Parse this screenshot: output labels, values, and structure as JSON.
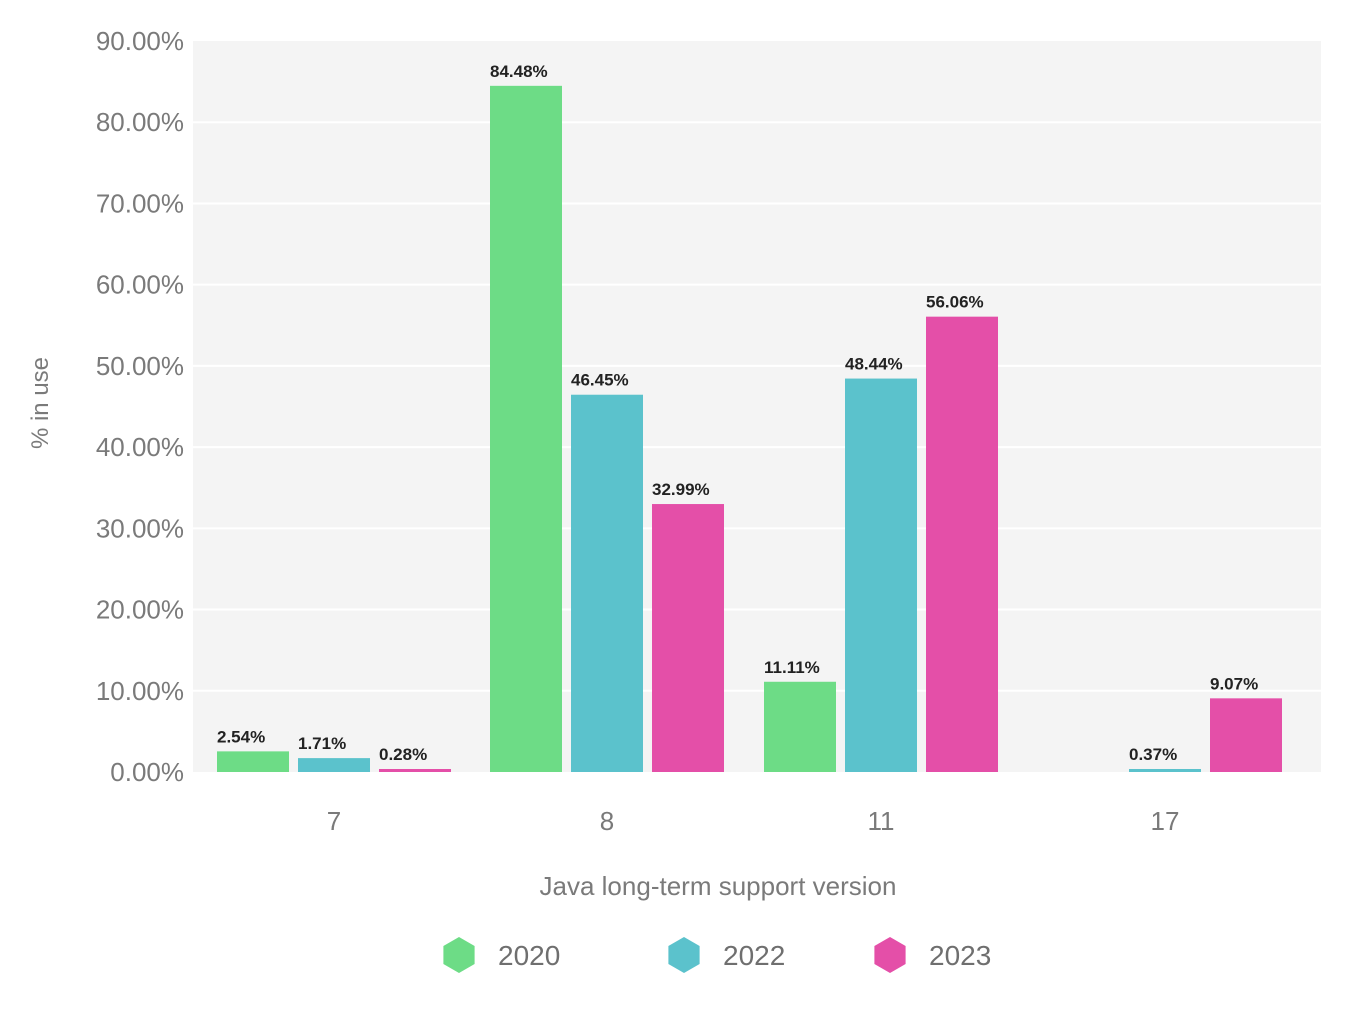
{
  "chart_data": {
    "type": "bar",
    "title": "",
    "xlabel": "Java long-term support version",
    "ylabel": "% in use",
    "categories": [
      "7",
      "8",
      "11",
      "17"
    ],
    "series": [
      {
        "name": "2020",
        "color": "#6ddc86",
        "values": [
          2.54,
          84.48,
          11.11,
          null
        ],
        "labels": [
          "2.54%",
          "84.48%",
          "11.11%",
          ""
        ]
      },
      {
        "name": "2022",
        "color": "#5bc2cc",
        "values": [
          1.71,
          46.45,
          48.44,
          0.37
        ],
        "labels": [
          "1.71%",
          "46.45%",
          "48.44%",
          "0.37%"
        ]
      },
      {
        "name": "2023",
        "color": "#e44fa8",
        "values": [
          0.28,
          32.99,
          56.06,
          9.07
        ],
        "labels": [
          "0.28%",
          "32.99%",
          "56.06%",
          "9.07%"
        ]
      }
    ],
    "ylim": [
      0,
      90
    ],
    "yticks": [
      "0.00%",
      "10.00%",
      "20.00%",
      "30.00%",
      "40.00%",
      "50.00%",
      "60.00%",
      "70.00%",
      "80.00%",
      "90.00%"
    ],
    "grid": true,
    "plot_background": "#f4f4f4",
    "legend_position": "bottom"
  }
}
